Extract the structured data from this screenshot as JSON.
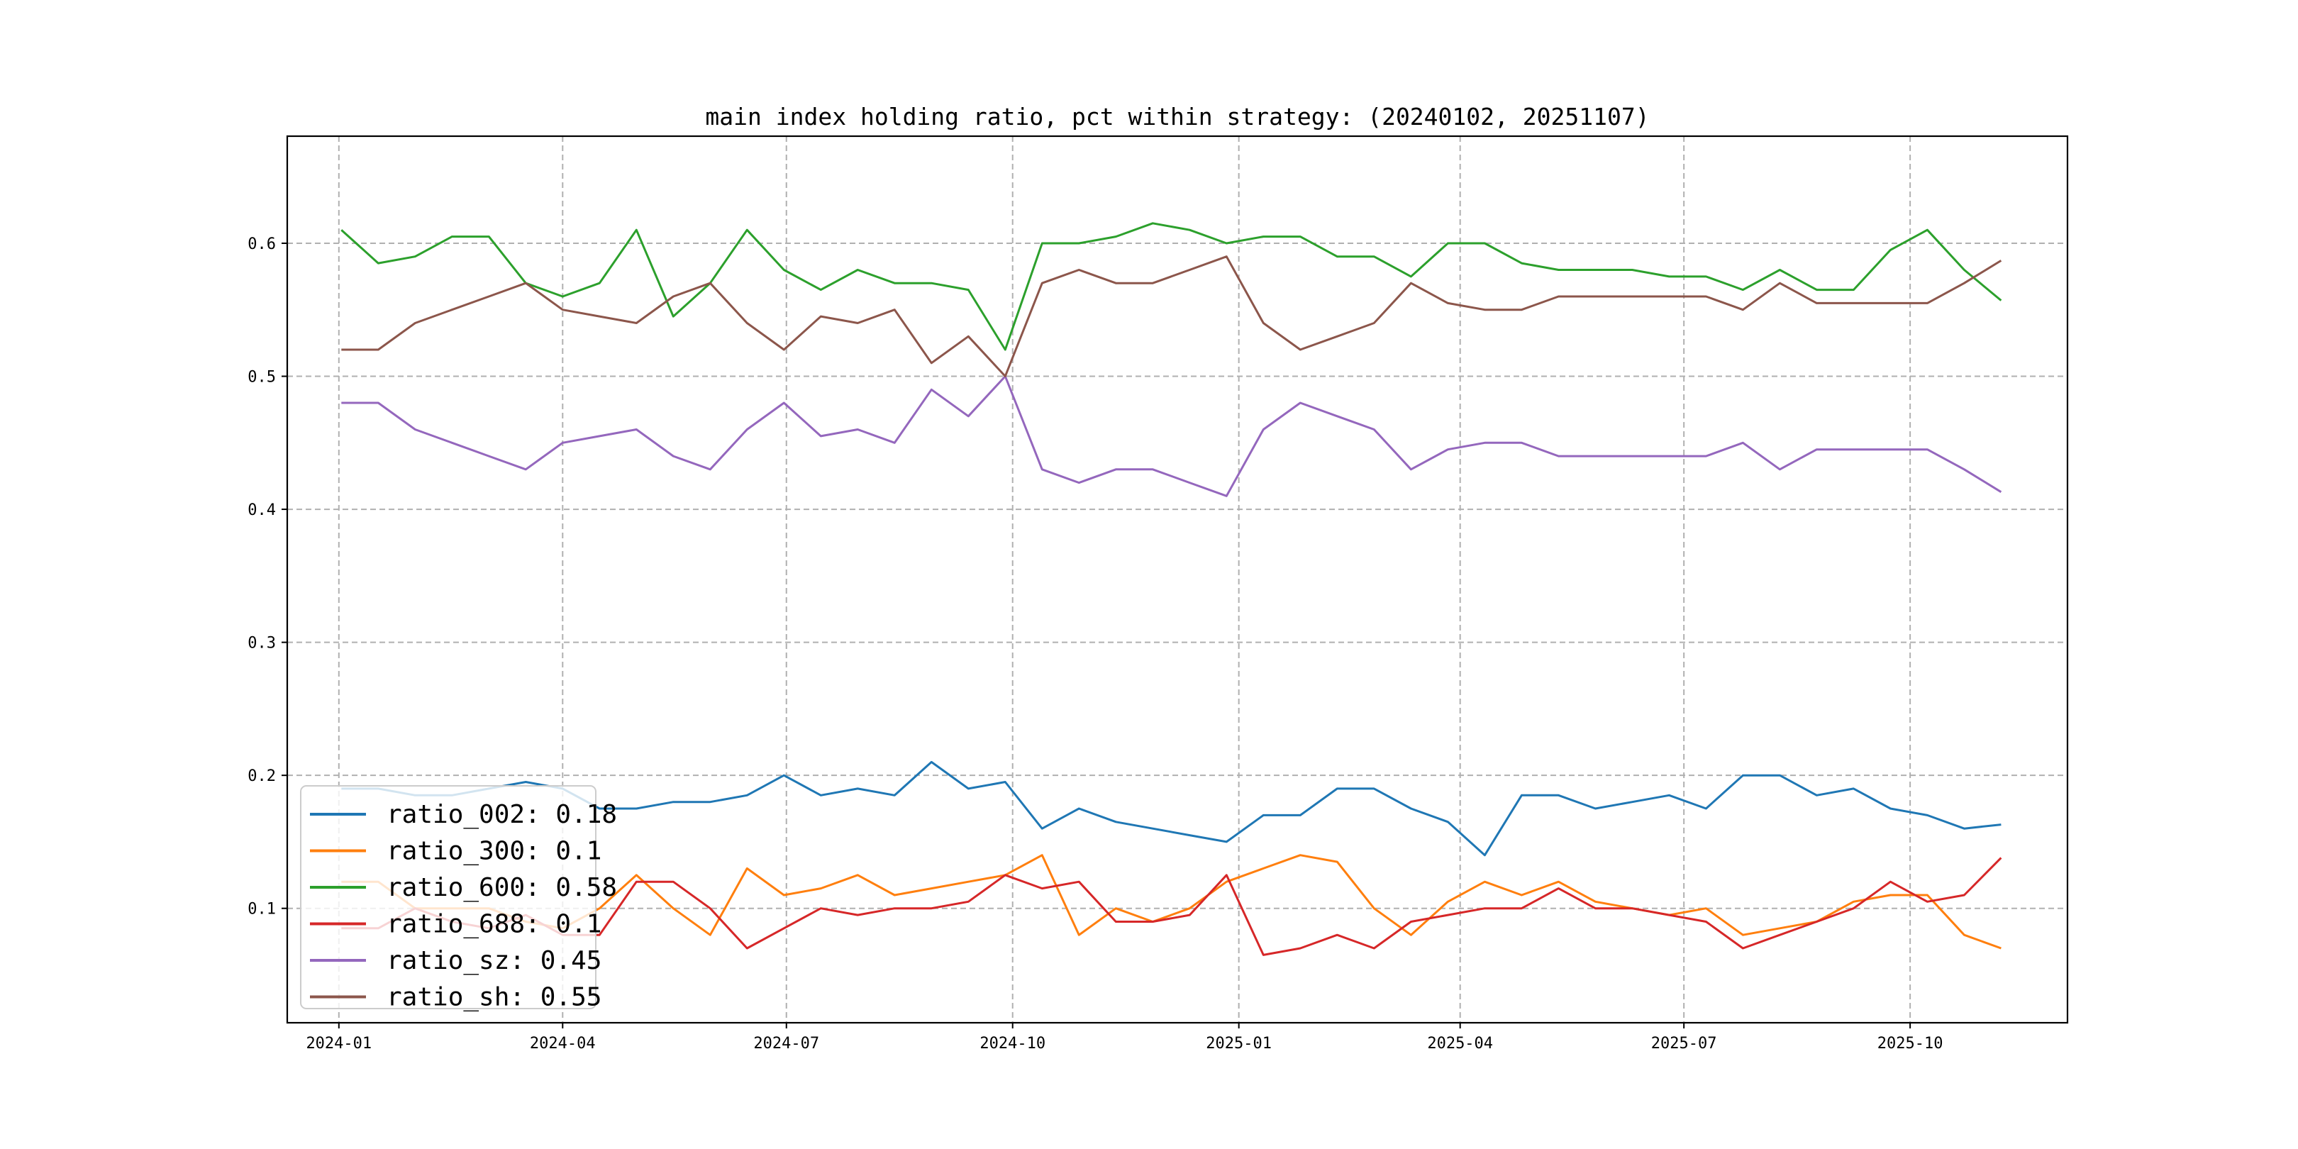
{
  "chart_data": {
    "type": "line",
    "title": "main index holding ratio, pct within strategy: (20240102, 20251107)",
    "xlabel": "",
    "ylabel": "",
    "xlim": [
      "2023-12-11",
      "2025-12-04"
    ],
    "ylim": [
      0.014,
      0.6805
    ],
    "grid": true,
    "legend_placement": "lower-left",
    "yticks": [
      0.1,
      0.2,
      0.3,
      0.4,
      0.5,
      0.6
    ],
    "ytick_labels": [
      "0.1",
      "0.2",
      "0.3",
      "0.4",
      "0.5",
      "0.6"
    ],
    "xticks": [
      "2024-01-01",
      "2024-04-01",
      "2024-07-01",
      "2024-10-01",
      "2025-01-01",
      "2025-04-01",
      "2025-07-01",
      "2025-10-01"
    ],
    "xtick_labels": [
      "2024-01",
      "2024-04",
      "2024-07",
      "2024-10",
      "2025-01",
      "2025-04",
      "2025-07",
      "2025-10"
    ],
    "x": [
      "2024-01-02",
      "2024-01-17",
      "2024-02-01",
      "2024-02-16",
      "2024-03-02",
      "2024-03-17",
      "2024-04-01",
      "2024-04-16",
      "2024-05-01",
      "2024-05-16",
      "2024-05-31",
      "2024-06-15",
      "2024-06-30",
      "2024-07-15",
      "2024-07-30",
      "2024-08-14",
      "2024-08-29",
      "2024-09-13",
      "2024-09-28",
      "2024-10-13",
      "2024-10-28",
      "2024-11-12",
      "2024-11-27",
      "2024-12-12",
      "2024-12-27",
      "2025-01-11",
      "2025-01-26",
      "2025-02-10",
      "2025-02-25",
      "2025-03-12",
      "2025-03-27",
      "2025-04-11",
      "2025-04-26",
      "2025-05-11",
      "2025-05-26",
      "2025-06-10",
      "2025-06-25",
      "2025-07-10",
      "2025-07-25",
      "2025-08-09",
      "2025-08-24",
      "2025-09-08",
      "2025-09-23",
      "2025-10-08",
      "2025-10-23",
      "2025-11-07"
    ],
    "series": [
      {
        "name": "ratio_002",
        "legend": "ratio_002: 0.18",
        "color": "#1f77b4",
        "values": [
          0.19,
          0.19,
          0.185,
          0.185,
          0.19,
          0.195,
          0.19,
          0.175,
          0.175,
          0.18,
          0.18,
          0.185,
          0.2,
          0.185,
          0.19,
          0.185,
          0.21,
          0.19,
          0.195,
          0.16,
          0.175,
          0.165,
          0.16,
          0.155,
          0.15,
          0.17,
          0.17,
          0.19,
          0.19,
          0.175,
          0.165,
          0.14,
          0.185,
          0.185,
          0.175,
          0.18,
          0.185,
          0.175,
          0.2,
          0.2,
          0.185,
          0.19,
          0.175,
          0.17,
          0.16,
          0.163
        ]
      },
      {
        "name": "ratio_300",
        "legend": "ratio_300: 0.1",
        "color": "#ff7f0e",
        "values": [
          0.12,
          0.12,
          0.1,
          0.1,
          0.1,
          0.09,
          0.085,
          0.1,
          0.125,
          0.1,
          0.08,
          0.13,
          0.11,
          0.115,
          0.125,
          0.11,
          0.115,
          0.12,
          0.125,
          0.14,
          0.08,
          0.1,
          0.09,
          0.1,
          0.12,
          0.13,
          0.14,
          0.135,
          0.1,
          0.08,
          0.105,
          0.12,
          0.11,
          0.12,
          0.105,
          0.1,
          0.095,
          0.1,
          0.08,
          0.085,
          0.09,
          0.105,
          0.11,
          0.11,
          0.08,
          0.07
        ]
      },
      {
        "name": "ratio_600",
        "legend": "ratio_600: 0.58",
        "color": "#2ca02c",
        "values": [
          0.61,
          0.585,
          0.59,
          0.605,
          0.605,
          0.57,
          0.56,
          0.57,
          0.61,
          0.545,
          0.57,
          0.61,
          0.58,
          0.565,
          0.58,
          0.57,
          0.57,
          0.565,
          0.52,
          0.6,
          0.6,
          0.605,
          0.615,
          0.61,
          0.6,
          0.605,
          0.605,
          0.59,
          0.59,
          0.575,
          0.6,
          0.6,
          0.585,
          0.58,
          0.58,
          0.58,
          0.575,
          0.575,
          0.565,
          0.58,
          0.565,
          0.565,
          0.595,
          0.61,
          0.58,
          0.557
        ]
      },
      {
        "name": "ratio_688",
        "legend": "ratio_688: 0.1",
        "color": "#d62728",
        "values": [
          0.085,
          0.085,
          0.1,
          0.09,
          0.085,
          0.095,
          0.08,
          0.08,
          0.12,
          0.12,
          0.1,
          0.07,
          0.085,
          0.1,
          0.095,
          0.1,
          0.1,
          0.105,
          0.125,
          0.115,
          0.12,
          0.09,
          0.09,
          0.095,
          0.125,
          0.065,
          0.07,
          0.08,
          0.07,
          0.09,
          0.095,
          0.1,
          0.1,
          0.115,
          0.1,
          0.1,
          0.095,
          0.09,
          0.07,
          0.08,
          0.09,
          0.1,
          0.12,
          0.105,
          0.11,
          0.138
        ]
      },
      {
        "name": "ratio_sz",
        "legend": "ratio_sz: 0.45",
        "color": "#9467bd",
        "values": [
          0.48,
          0.48,
          0.46,
          0.45,
          0.44,
          0.43,
          0.45,
          0.455,
          0.46,
          0.44,
          0.43,
          0.46,
          0.48,
          0.455,
          0.46,
          0.45,
          0.49,
          0.47,
          0.5,
          0.43,
          0.42,
          0.43,
          0.43,
          0.42,
          0.41,
          0.46,
          0.48,
          0.47,
          0.46,
          0.43,
          0.445,
          0.45,
          0.45,
          0.44,
          0.44,
          0.44,
          0.44,
          0.44,
          0.45,
          0.43,
          0.445,
          0.445,
          0.445,
          0.445,
          0.43,
          0.413
        ]
      },
      {
        "name": "ratio_sh",
        "legend": "ratio_sh: 0.55",
        "color": "#8c564b",
        "values": [
          0.52,
          0.52,
          0.54,
          0.55,
          0.56,
          0.57,
          0.55,
          0.545,
          0.54,
          0.56,
          0.57,
          0.54,
          0.52,
          0.545,
          0.54,
          0.55,
          0.51,
          0.53,
          0.5,
          0.57,
          0.58,
          0.57,
          0.57,
          0.58,
          0.59,
          0.54,
          0.52,
          0.53,
          0.54,
          0.57,
          0.555,
          0.55,
          0.55,
          0.56,
          0.56,
          0.56,
          0.56,
          0.56,
          0.55,
          0.57,
          0.555,
          0.555,
          0.555,
          0.555,
          0.57,
          0.587
        ]
      }
    ]
  }
}
